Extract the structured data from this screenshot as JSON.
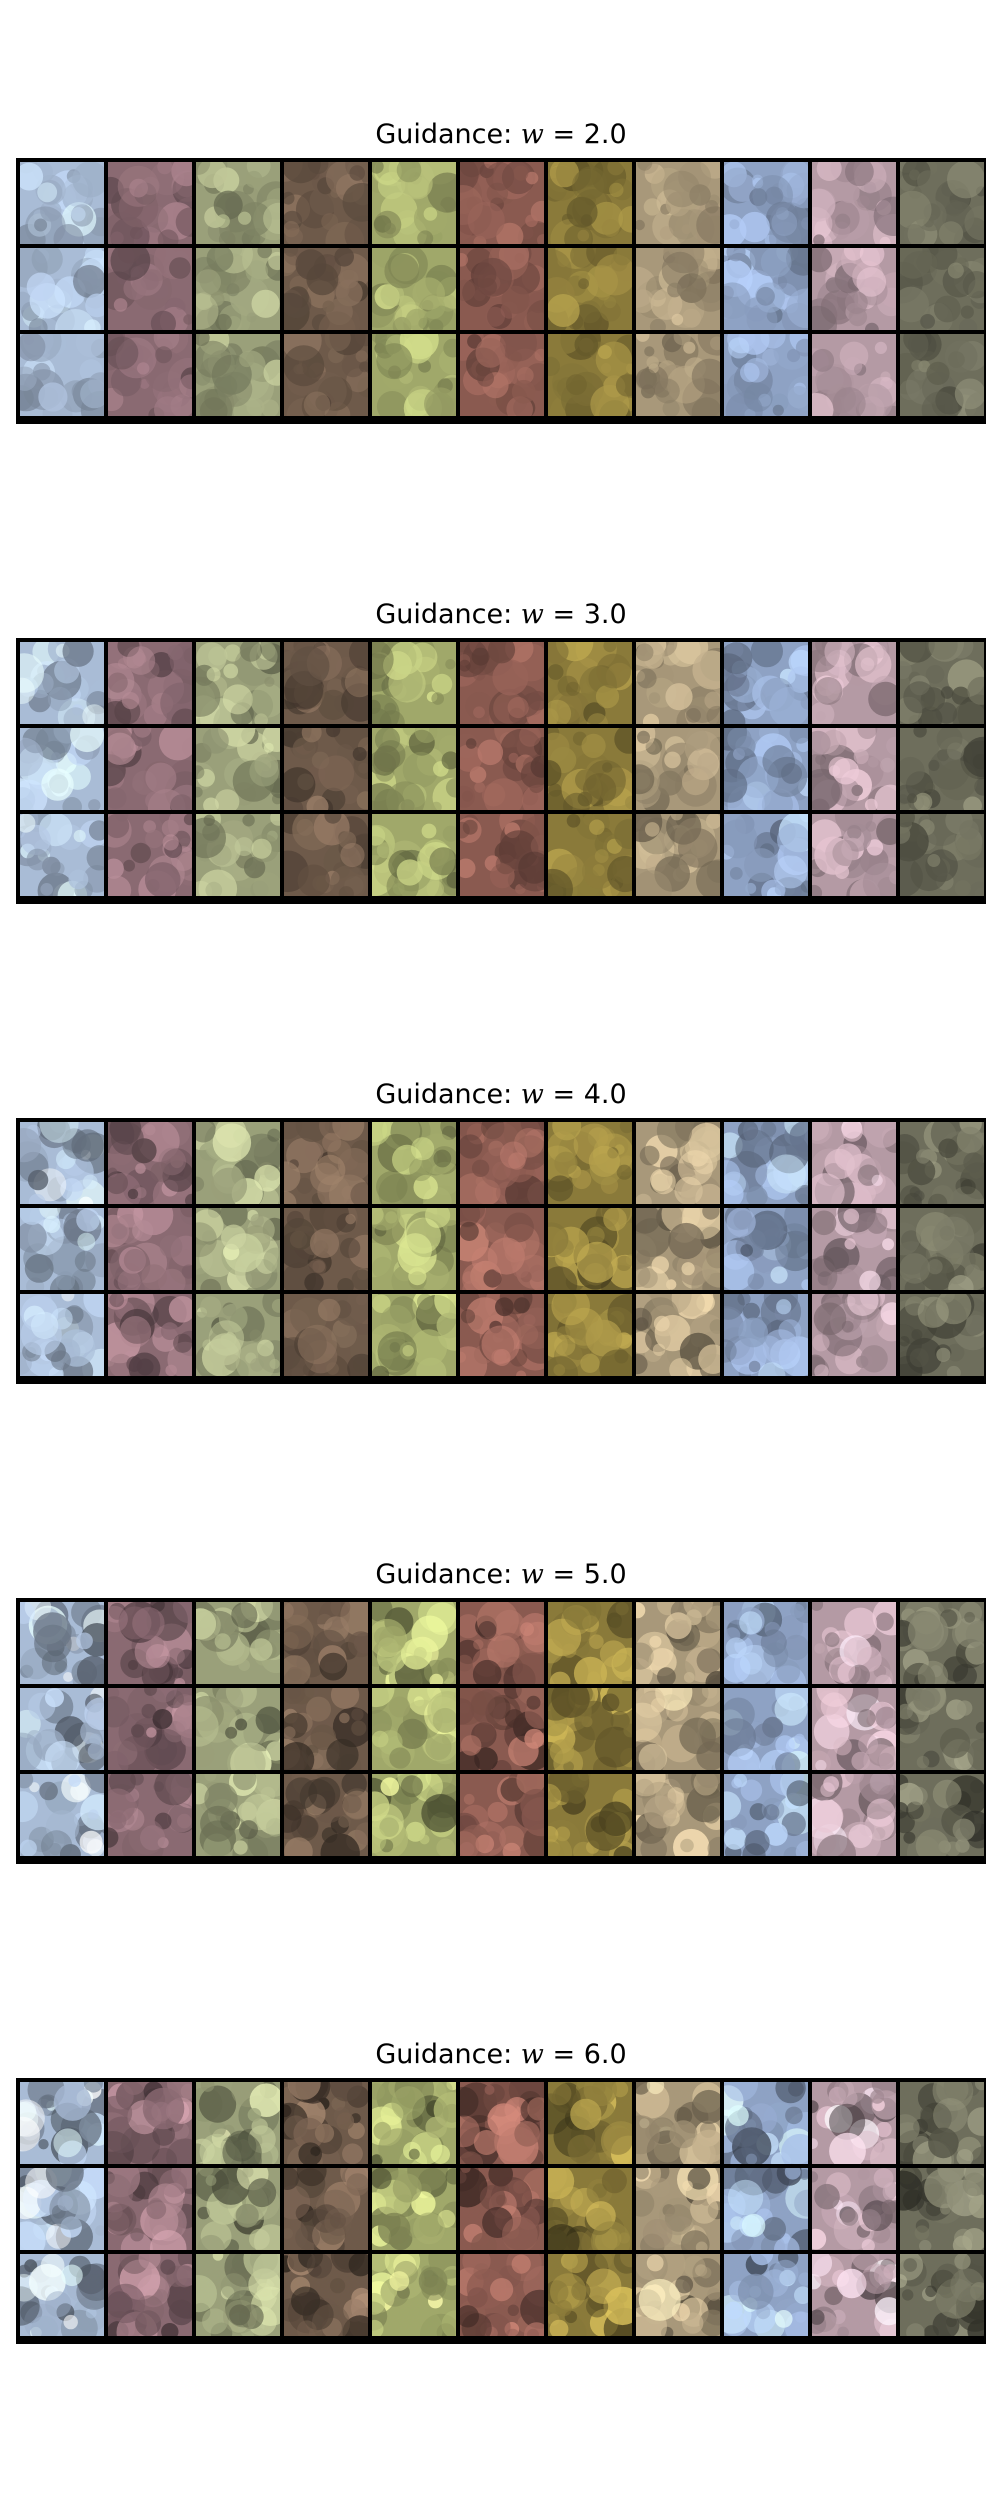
{
  "panels": [
    {
      "id": "w2",
      "title_prefix": "Guidance: ",
      "title_var": "w",
      "title_eq": " = ",
      "title_value": "2.0",
      "guidance": 2.0
    },
    {
      "id": "w3",
      "title_prefix": "Guidance: ",
      "title_var": "w",
      "title_eq": " = ",
      "title_value": "3.0",
      "guidance": 3.0
    },
    {
      "id": "w4",
      "title_prefix": "Guidance: ",
      "title_var": "w",
      "title_eq": " = ",
      "title_value": "4.0",
      "guidance": 4.0
    },
    {
      "id": "w5",
      "title_prefix": "Guidance: ",
      "title_var": "w",
      "title_eq": " = ",
      "title_value": "5.0",
      "guidance": 5.0
    },
    {
      "id": "w6",
      "title_prefix": "Guidance: ",
      "title_var": "w",
      "title_eq": " = ",
      "title_value": "6.0",
      "guidance": 6.0
    }
  ],
  "grid": {
    "rows": 3,
    "columns": 11,
    "column_palette": [
      "#a9bcd6",
      "#8a6a72",
      "#9aa07a",
      "#6e5a4a",
      "#a0a86a",
      "#8a5a50",
      "#8a7a3a",
      "#a8987a",
      "#8ea2c4",
      "#b49aa4",
      "#6e6e5c"
    ],
    "border_color": "#000000"
  }
}
